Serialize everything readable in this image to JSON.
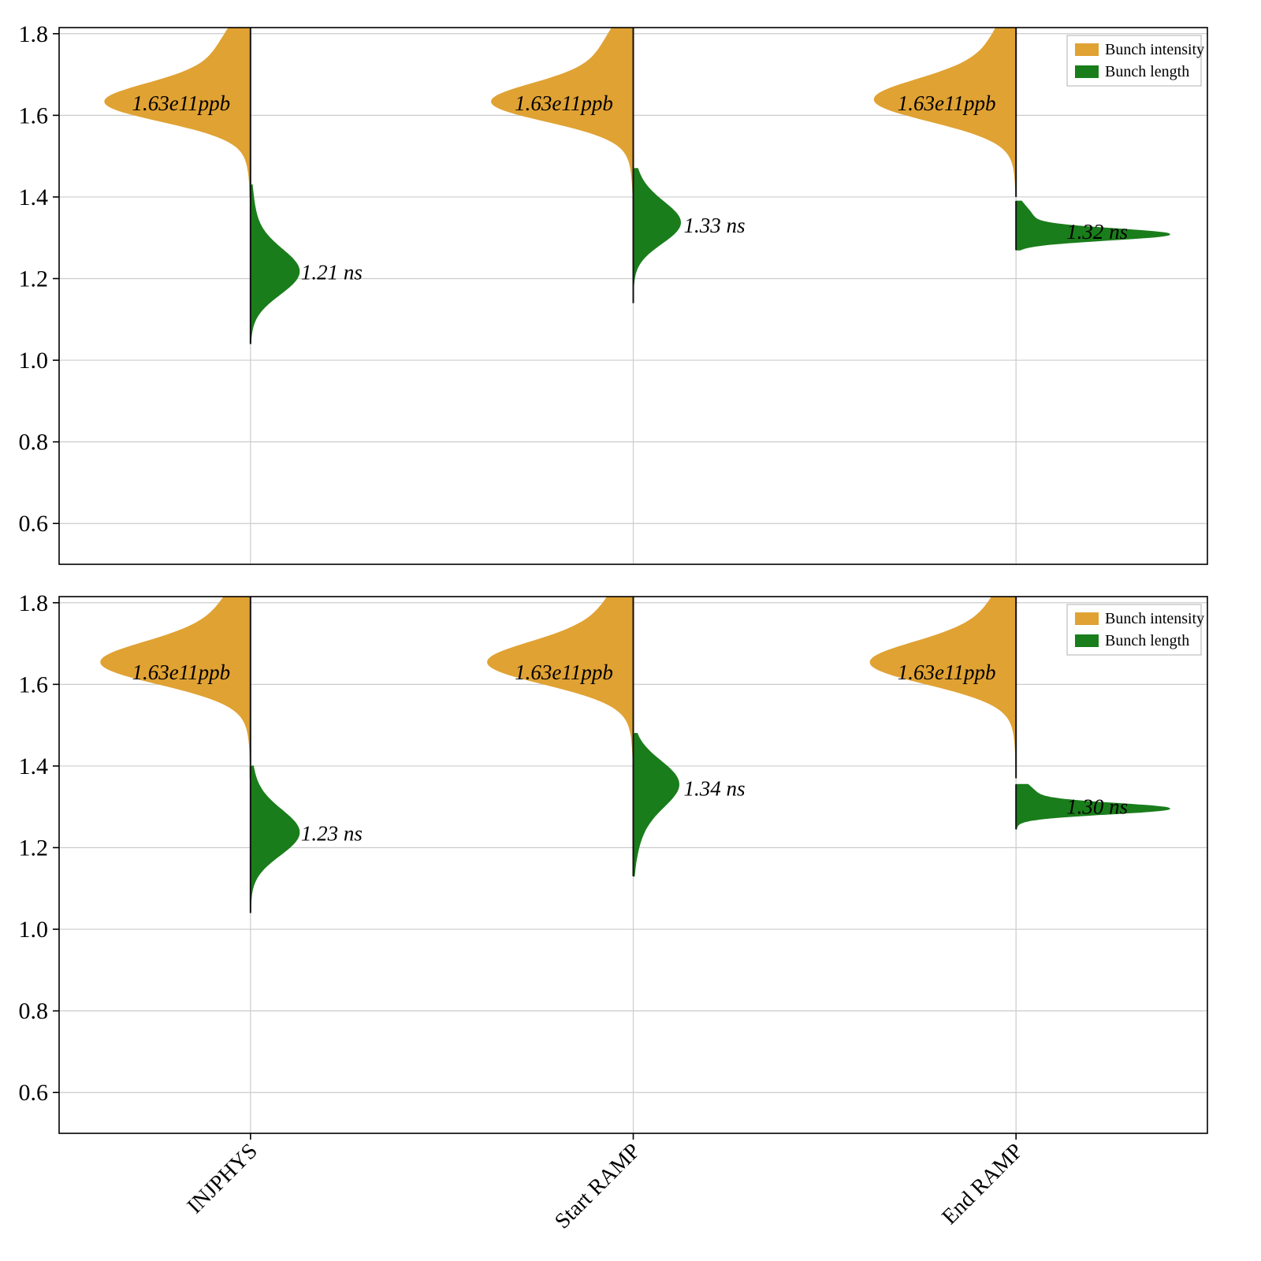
{
  "figure": {
    "background": "#ffffff",
    "accent_orange": "#e0a233",
    "accent_green": "#1a7d1b"
  },
  "chart_data": [
    {
      "type": "violin",
      "panel": "top",
      "categories": [
        "INJPHYS",
        "Start RAMP",
        "End RAMP"
      ],
      "ylim": [
        0.5,
        1.815
      ],
      "yticks": [
        1.8,
        1.6,
        1.4,
        1.2,
        1.0,
        0.8,
        0.6
      ],
      "grid": true,
      "show_xticklabels": false,
      "legend": {
        "position": "upper right",
        "entries": [
          {
            "label": "Bunch intensity",
            "color": "#e0a233"
          },
          {
            "label": "Bunch length",
            "color": "#1a7d1b"
          }
        ]
      },
      "series": [
        {
          "name": "Bunch intensity",
          "side": "left",
          "color": "#e0a233",
          "violins": [
            {
              "category": "INJPHYS",
              "annotation": "1.63e11ppb",
              "annotation_value": 1.63,
              "peak": 1.63,
              "range": [
                1.4,
                1.815
              ],
              "max_width": 185,
              "shape": [
                [
                  1,
                  1.63,
                  0.045
                ],
                [
                  0.35,
                  1.705,
                  0.1
                ]
              ]
            },
            {
              "category": "Start RAMP",
              "annotation": "1.63e11ppb",
              "annotation_value": 1.63,
              "peak": 1.63,
              "range": [
                1.41,
                1.815
              ],
              "max_width": 180,
              "shape": [
                [
                  1,
                  1.63,
                  0.045
                ],
                [
                  0.35,
                  1.705,
                  0.1
                ]
              ]
            },
            {
              "category": "End RAMP",
              "annotation": "1.63e11ppb",
              "annotation_value": 1.63,
              "peak": 1.635,
              "range": [
                1.4,
                1.815
              ],
              "max_width": 180,
              "shape": [
                [
                  1,
                  1.635,
                  0.05
                ],
                [
                  0.3,
                  1.71,
                  0.1
                ]
              ]
            }
          ]
        },
        {
          "name": "Bunch length",
          "side": "right",
          "color": "#1a7d1b",
          "violins": [
            {
              "category": "INJPHYS",
              "annotation": "1.21 ns",
              "annotation_value": 1.215,
              "peak": 1.21,
              "range": [
                1.04,
                1.43
              ],
              "max_width": 62,
              "shape": [
                [
                  1,
                  1.215,
                  0.055
                ],
                [
                  0.12,
                  1.31,
                  0.08
                ]
              ]
            },
            {
              "category": "Start RAMP",
              "annotation": "1.33 ns",
              "annotation_value": 1.33,
              "peak": 1.33,
              "range": [
                1.14,
                1.47
              ],
              "max_width": 60,
              "shape": [
                [
                  1,
                  1.335,
                  0.05
                ],
                [
                  0.12,
                  1.42,
                  0.05
                ]
              ]
            },
            {
              "category": "End RAMP",
              "annotation": "1.32 ns",
              "annotation_value": 1.315,
              "peak": 1.31,
              "range": [
                1.27,
                1.39
              ],
              "max_width": 195,
              "shape": [
                [
                  1,
                  1.308,
                  0.014
                ],
                [
                  0.12,
                  1.345,
                  0.03
                ]
              ]
            }
          ]
        }
      ]
    },
    {
      "type": "violin",
      "panel": "bottom",
      "categories": [
        "INJPHYS",
        "Start RAMP",
        "End RAMP"
      ],
      "ylim": [
        0.5,
        1.815
      ],
      "yticks": [
        1.8,
        1.6,
        1.4,
        1.2,
        1.0,
        0.8,
        0.6
      ],
      "grid": true,
      "show_xticklabels": true,
      "legend": {
        "position": "upper right",
        "entries": [
          {
            "label": "Bunch intensity",
            "color": "#e0a233"
          },
          {
            "label": "Bunch length",
            "color": "#1a7d1b"
          }
        ]
      },
      "series": [
        {
          "name": "Bunch intensity",
          "side": "left",
          "color": "#e0a233",
          "violins": [
            {
              "category": "INJPHYS",
              "annotation": "1.63e11ppb",
              "annotation_value": 1.63,
              "peak": 1.65,
              "range": [
                1.37,
                1.815
              ],
              "max_width": 190,
              "shape": [
                [
                  1,
                  1.65,
                  0.05
                ],
                [
                  0.35,
                  1.72,
                  0.1
                ]
              ]
            },
            {
              "category": "Start RAMP",
              "annotation": "1.63e11ppb",
              "annotation_value": 1.63,
              "peak": 1.65,
              "range": [
                1.38,
                1.815
              ],
              "max_width": 185,
              "shape": [
                [
                  1,
                  1.65,
                  0.05
                ],
                [
                  0.35,
                  1.72,
                  0.1
                ]
              ]
            },
            {
              "category": "End RAMP",
              "annotation": "1.63e11ppb",
              "annotation_value": 1.63,
              "peak": 1.65,
              "range": [
                1.37,
                1.815
              ],
              "max_width": 185,
              "shape": [
                [
                  1,
                  1.65,
                  0.05
                ],
                [
                  0.32,
                  1.72,
                  0.1
                ]
              ]
            }
          ]
        },
        {
          "name": "Bunch length",
          "side": "right",
          "color": "#1a7d1b",
          "violins": [
            {
              "category": "INJPHYS",
              "annotation": "1.23 ns",
              "annotation_value": 1.235,
              "peak": 1.23,
              "range": [
                1.04,
                1.4
              ],
              "max_width": 62,
              "shape": [
                [
                  1,
                  1.235,
                  0.055
                ],
                [
                  0.1,
                  1.32,
                  0.07
                ]
              ]
            },
            {
              "category": "Start RAMP",
              "annotation": "1.34 ns",
              "annotation_value": 1.345,
              "peak": 1.36,
              "range": [
                1.13,
                1.48
              ],
              "max_width": 58,
              "shape": [
                [
                  1,
                  1.36,
                  0.055
                ],
                [
                  0.2,
                  1.27,
                  0.07
                ]
              ]
            },
            {
              "category": "End RAMP",
              "annotation": "1.30 ns",
              "annotation_value": 1.3,
              "peak": 1.295,
              "range": [
                1.245,
                1.355
              ],
              "max_width": 195,
              "shape": [
                [
                  1,
                  1.295,
                  0.013
                ],
                [
                  0.15,
                  1.325,
                  0.028
                ]
              ]
            }
          ]
        }
      ]
    }
  ]
}
